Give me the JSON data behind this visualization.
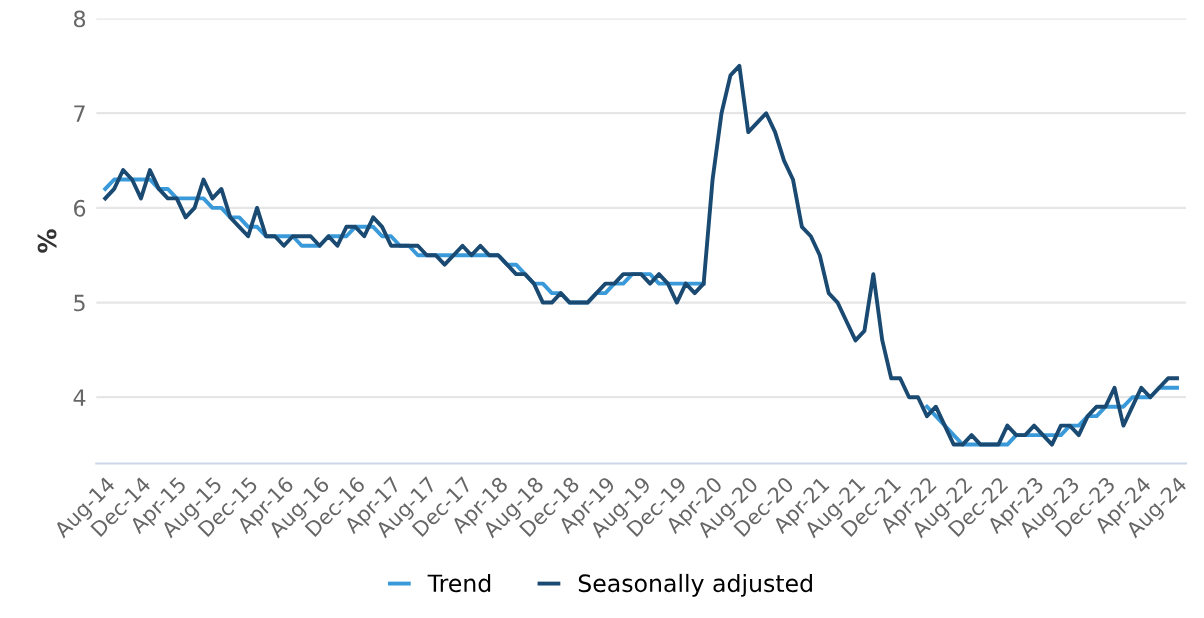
{
  "chart_data": {
    "type": "line",
    "ylabel": "%",
    "categories": [
      "Aug-14",
      null,
      null,
      null,
      "Dec-14",
      null,
      null,
      null,
      "Apr-15",
      null,
      null,
      null,
      "Aug-15",
      null,
      null,
      null,
      "Dec-15",
      null,
      null,
      null,
      "Apr-16",
      null,
      null,
      null,
      "Aug-16",
      null,
      null,
      null,
      "Dec-16",
      null,
      null,
      null,
      "Apr-17",
      null,
      null,
      null,
      "Aug-17",
      null,
      null,
      null,
      "Dec-17",
      null,
      null,
      null,
      "Apr-18",
      null,
      null,
      null,
      "Aug-18",
      null,
      null,
      null,
      "Dec-18",
      null,
      null,
      null,
      "Apr-19",
      null,
      null,
      null,
      "Aug-19",
      null,
      null,
      null,
      "Dec-19",
      null,
      null,
      null,
      "Apr-20",
      null,
      null,
      null,
      "Aug-20",
      null,
      null,
      null,
      "Dec-20",
      null,
      null,
      null,
      "Apr-21",
      null,
      null,
      null,
      "Aug-21",
      null,
      null,
      null,
      "Dec-21",
      null,
      null,
      null,
      "Apr-22",
      null,
      null,
      null,
      "Aug-22",
      null,
      null,
      null,
      "Dec-22",
      null,
      null,
      null,
      "Apr-23",
      null,
      null,
      null,
      "Aug-23",
      null,
      null,
      null,
      "Dec-23",
      null,
      null,
      null,
      "Apr-24",
      null,
      null,
      null,
      "Aug-24"
    ],
    "series": [
      {
        "name": "Trend",
        "color": "#3a9ad9",
        "values": [
          6.2,
          6.3,
          6.3,
          6.3,
          6.3,
          6.3,
          6.2,
          6.2,
          6.1,
          6.1,
          6.1,
          6.1,
          6.0,
          6.0,
          5.9,
          5.9,
          5.8,
          5.8,
          5.7,
          5.7,
          5.7,
          5.7,
          5.6,
          5.6,
          5.6,
          5.7,
          5.7,
          5.7,
          5.8,
          5.8,
          5.8,
          5.7,
          5.7,
          5.6,
          5.6,
          5.5,
          5.5,
          5.5,
          5.5,
          5.5,
          5.5,
          5.5,
          5.5,
          5.5,
          5.5,
          5.4,
          5.4,
          5.3,
          5.2,
          5.2,
          5.1,
          5.1,
          5.0,
          5.0,
          5.0,
          5.1,
          5.1,
          5.2,
          5.2,
          5.3,
          5.3,
          5.3,
          5.2,
          5.2,
          5.2,
          5.2,
          5.2,
          5.2,
          null,
          null,
          null,
          null,
          null,
          null,
          null,
          null,
          null,
          null,
          null,
          null,
          null,
          null,
          null,
          null,
          null,
          null,
          null,
          null,
          null,
          null,
          null,
          null,
          3.9,
          3.8,
          3.7,
          3.6,
          3.5,
          3.5,
          3.5,
          3.5,
          3.5,
          3.5,
          3.6,
          3.6,
          3.6,
          3.6,
          3.6,
          3.6,
          3.7,
          3.7,
          3.8,
          3.8,
          3.9,
          3.9,
          3.9,
          4.0,
          4.0,
          4.0,
          4.1,
          4.1,
          4.1
        ]
      },
      {
        "name": "Seasonally adjusted",
        "color": "#1a4a72",
        "values": [
          6.1,
          6.2,
          6.4,
          6.3,
          6.1,
          6.4,
          6.2,
          6.1,
          6.1,
          5.9,
          6.0,
          6.3,
          6.1,
          6.2,
          5.9,
          5.8,
          5.7,
          6.0,
          5.7,
          5.7,
          5.6,
          5.7,
          5.7,
          5.7,
          5.6,
          5.7,
          5.6,
          5.8,
          5.8,
          5.7,
          5.9,
          5.8,
          5.6,
          5.6,
          5.6,
          5.6,
          5.5,
          5.5,
          5.4,
          5.5,
          5.6,
          5.5,
          5.6,
          5.5,
          5.5,
          5.4,
          5.3,
          5.3,
          5.2,
          5.0,
          5.0,
          5.1,
          5.0,
          5.0,
          5.0,
          5.1,
          5.2,
          5.2,
          5.3,
          5.3,
          5.3,
          5.2,
          5.3,
          5.2,
          5.0,
          5.2,
          5.1,
          5.2,
          6.3,
          7.0,
          7.4,
          7.5,
          6.8,
          6.9,
          7.0,
          6.8,
          6.5,
          6.3,
          5.8,
          5.7,
          5.5,
          5.1,
          5.0,
          4.8,
          4.6,
          4.7,
          5.3,
          4.6,
          4.2,
          4.2,
          4.0,
          4.0,
          3.8,
          3.9,
          3.7,
          3.5,
          3.5,
          3.6,
          3.5,
          3.5,
          3.5,
          3.7,
          3.6,
          3.6,
          3.7,
          3.6,
          3.5,
          3.7,
          3.7,
          3.6,
          3.8,
          3.9,
          3.9,
          4.1,
          3.7,
          3.9,
          4.1,
          4.0,
          4.1,
          4.2,
          4.2
        ]
      }
    ],
    "ylim": [
      3.3,
      8
    ],
    "yticks": [
      4,
      5,
      6,
      7,
      8
    ],
    "grid": "y",
    "legend": "bottom",
    "marker": "none",
    "line_style": "solid"
  }
}
